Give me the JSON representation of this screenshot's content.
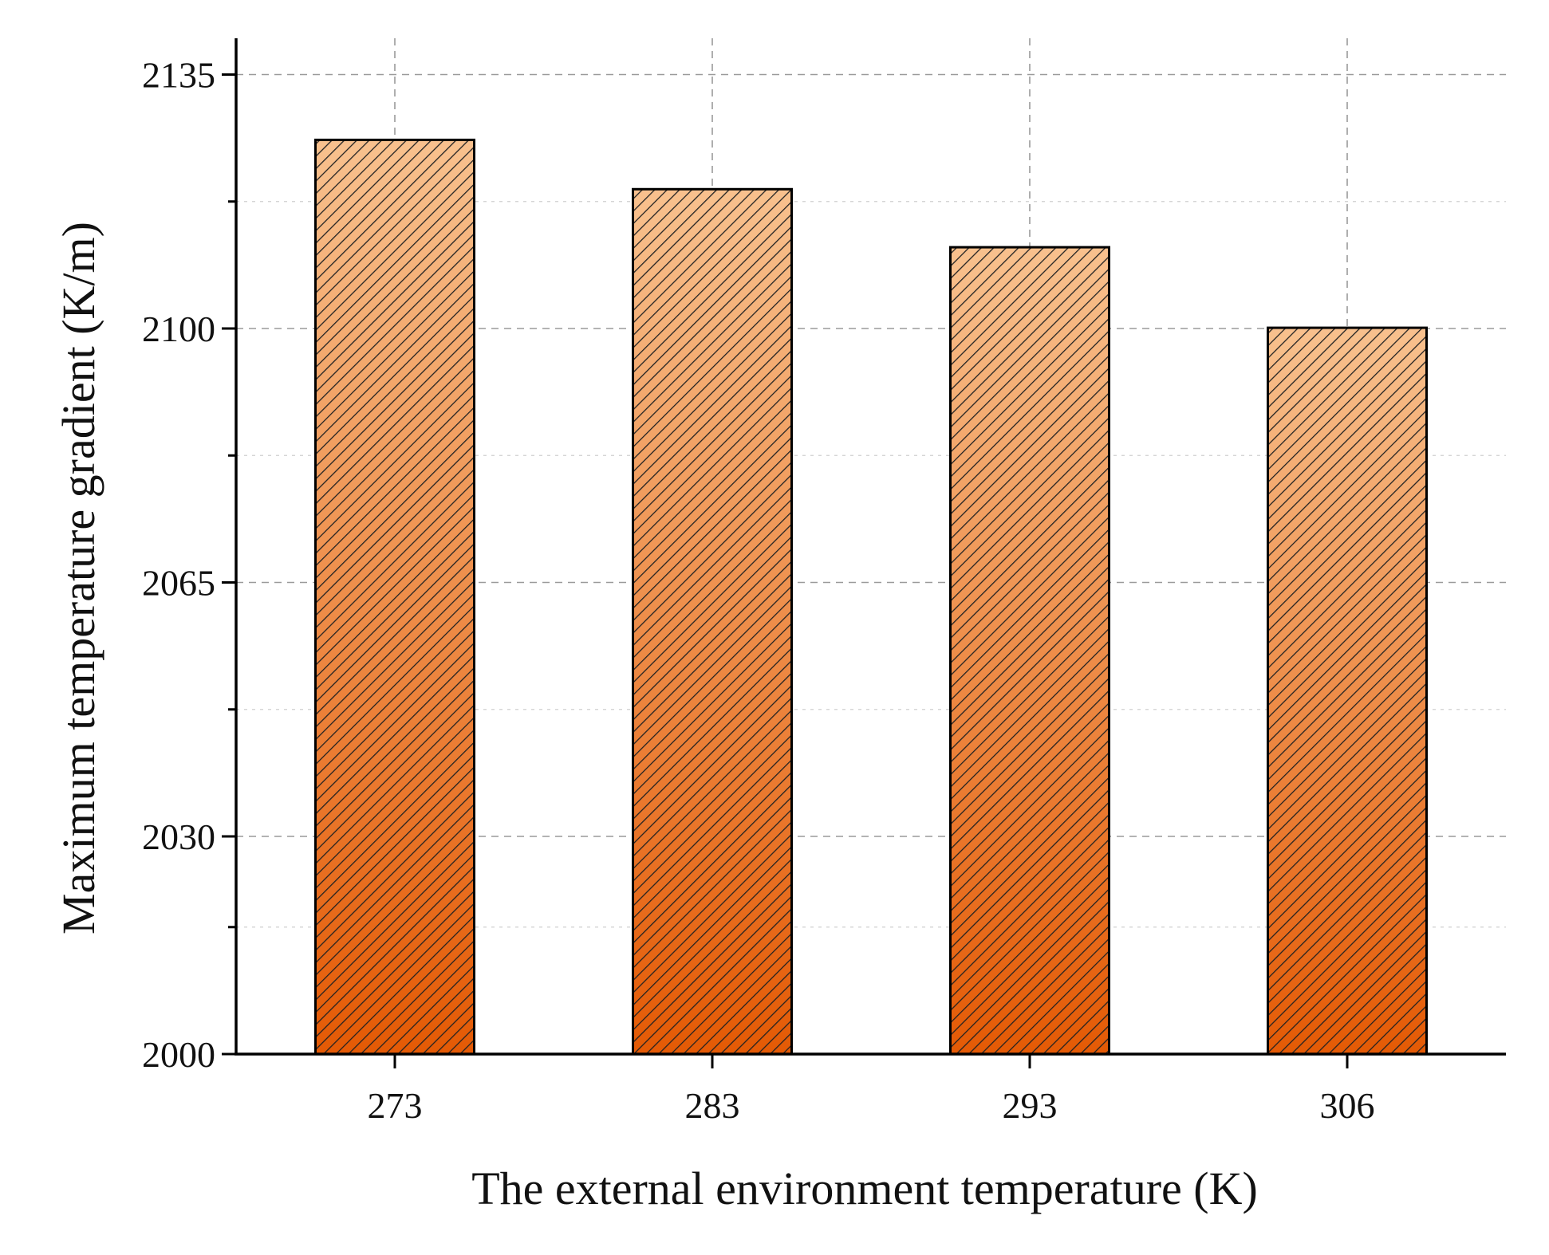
{
  "chart_data": {
    "type": "bar",
    "title": "",
    "xlabel": "The external environment temperature (K)",
    "ylabel": "Maximum temperature gradient (K/m)",
    "categories": [
      "273",
      "283",
      "293",
      "306"
    ],
    "values": [
      2126,
      2119.2,
      2111.2,
      2100.1
    ],
    "ylim": [
      2000,
      2140
    ],
    "yticks": [
      2000,
      2030,
      2065,
      2100,
      2135
    ],
    "yticks_minor": [
      2017.5,
      2047.5,
      2082.5,
      2117.5
    ],
    "grid": true,
    "legend": "none",
    "colors": {
      "bar_top": "#f8c18e",
      "bar_bottom": "#e45a05",
      "hatch": "#222222"
    }
  }
}
